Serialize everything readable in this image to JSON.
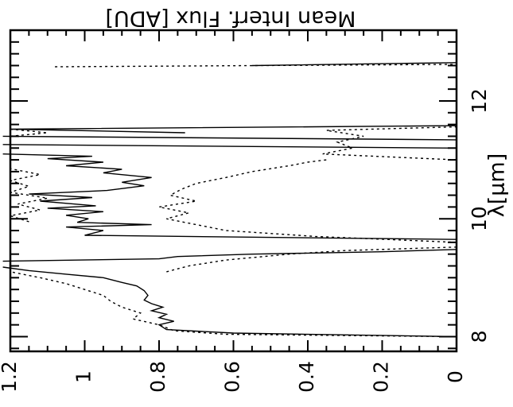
{
  "chart_data": {
    "type": "line",
    "orientation": "rotated 90 degrees",
    "xlabel": "λ[μm]",
    "ylabel": "Mean Interf. Flux [ADU]",
    "xlim": [
      7.75,
      13.2
    ],
    "ylim": [
      0,
      1.2
    ],
    "x_ticks": [
      8,
      10,
      12
    ],
    "y_ticks": [
      0,
      0.2,
      0.4,
      0.6,
      0.8,
      1,
      1.2
    ],
    "x_tick_labels": [
      "8",
      "10",
      "12"
    ],
    "y_tick_labels": [
      "0",
      "0.2",
      "0.4",
      "0.6",
      "0.8",
      "1",
      "1.2"
    ],
    "grid": false,
    "series": [
      {
        "style": "solid",
        "points": [
          [
            8.0,
            0.0
          ],
          [
            8.06,
            0.6
          ],
          [
            8.12,
            0.78
          ],
          [
            8.2,
            0.8
          ],
          [
            8.26,
            0.76
          ],
          [
            8.32,
            0.8
          ],
          [
            8.38,
            0.78
          ],
          [
            8.44,
            0.82
          ],
          [
            8.5,
            0.79
          ],
          [
            8.56,
            0.82
          ],
          [
            8.62,
            0.84
          ],
          [
            8.7,
            0.83
          ],
          [
            8.78,
            0.84
          ],
          [
            8.86,
            0.86
          ],
          [
            8.92,
            0.9
          ],
          [
            9.0,
            0.95
          ],
          [
            9.06,
            1.05
          ],
          [
            9.12,
            1.15
          ],
          [
            9.18,
            1.22
          ],
          null,
          [
            9.28,
            1.22
          ],
          [
            9.32,
            0.8
          ],
          [
            9.36,
            0.75
          ],
          [
            9.4,
            0.55
          ],
          [
            9.44,
            0.2
          ],
          [
            9.48,
            0.0
          ],
          null,
          [
            9.65,
            0.0
          ],
          [
            9.72,
            1.0
          ],
          [
            9.8,
            0.95
          ],
          [
            9.86,
            1.05
          ],
          [
            9.9,
            0.82
          ],
          [
            9.94,
            1.02
          ],
          [
            10.0,
            0.99
          ],
          [
            10.06,
            1.05
          ],
          [
            10.12,
            0.95
          ],
          [
            10.18,
            1.1
          ],
          [
            10.22,
            0.97
          ],
          [
            10.3,
            1.12
          ],
          [
            10.36,
            0.98
          ],
          [
            10.42,
            1.15
          ],
          [
            10.48,
            0.94
          ],
          [
            10.56,
            0.84
          ],
          [
            10.62,
            0.9
          ],
          [
            10.7,
            0.82
          ],
          [
            10.78,
            0.95
          ],
          [
            10.84,
            0.9
          ],
          [
            10.9,
            1.05
          ],
          [
            10.96,
            0.95
          ],
          [
            11.02,
            1.1
          ],
          [
            11.06,
            0.98
          ],
          [
            11.1,
            1.22
          ],
          null,
          [
            11.2,
            0.0
          ],
          [
            11.26,
            1.22
          ],
          null,
          [
            11.34,
            0.0
          ],
          [
            11.4,
            1.22
          ],
          null,
          [
            11.46,
            0.73
          ],
          [
            11.52,
            1.2
          ],
          [
            11.58,
            0.0
          ],
          null,
          [
            12.6,
            0.55
          ],
          [
            12.65,
            0.0
          ]
        ]
      },
      {
        "style": "dotted",
        "points": [
          [
            8.0,
            0.0
          ],
          [
            8.04,
            0.62
          ],
          [
            8.1,
            0.76
          ],
          [
            8.2,
            0.8
          ],
          [
            8.3,
            0.87
          ],
          [
            8.4,
            0.85
          ],
          [
            8.5,
            0.9
          ],
          [
            8.6,
            0.93
          ],
          [
            8.7,
            0.95
          ],
          [
            8.8,
            1.0
          ],
          [
            8.9,
            1.05
          ],
          [
            9.0,
            1.12
          ],
          [
            9.1,
            1.2
          ],
          null,
          [
            9.1,
            0.78
          ],
          [
            9.2,
            0.72
          ],
          [
            9.3,
            0.62
          ],
          [
            9.4,
            0.45
          ],
          [
            9.46,
            0.3
          ],
          [
            9.52,
            0.0
          ],
          null,
          [
            9.6,
            0.0
          ],
          [
            9.7,
            0.38
          ],
          [
            9.8,
            0.62
          ],
          [
            9.9,
            0.7
          ],
          [
            10.0,
            0.78
          ],
          [
            10.1,
            0.72
          ],
          [
            10.2,
            0.8
          ],
          [
            10.3,
            0.7
          ],
          [
            10.4,
            0.77
          ],
          [
            10.5,
            0.74
          ],
          [
            10.6,
            0.7
          ],
          [
            10.7,
            0.62
          ],
          [
            10.8,
            0.55
          ],
          [
            10.9,
            0.45
          ],
          [
            10.96,
            0.4
          ],
          [
            11.0,
            0.35
          ],
          null,
          [
            9.95,
            1.15
          ],
          [
            10.05,
            1.2
          ],
          [
            10.15,
            1.12
          ],
          [
            10.25,
            1.18
          ],
          [
            10.35,
            1.1
          ],
          [
            10.45,
            1.2
          ],
          [
            10.55,
            1.15
          ],
          [
            10.65,
            1.2
          ],
          [
            10.75,
            1.12
          ],
          [
            10.85,
            1.2
          ],
          null,
          [
            11.0,
            0.0
          ],
          [
            11.1,
            0.36
          ],
          [
            11.2,
            0.28
          ],
          [
            11.3,
            0.32
          ],
          [
            11.4,
            0.25
          ],
          [
            11.5,
            0.35
          ],
          [
            11.56,
            0.0
          ],
          null,
          [
            11.4,
            1.2
          ],
          [
            11.46,
            1.1
          ],
          [
            11.52,
            1.2
          ],
          null,
          [
            12.58,
            1.08
          ],
          [
            12.62,
            0.0
          ]
        ]
      }
    ]
  }
}
